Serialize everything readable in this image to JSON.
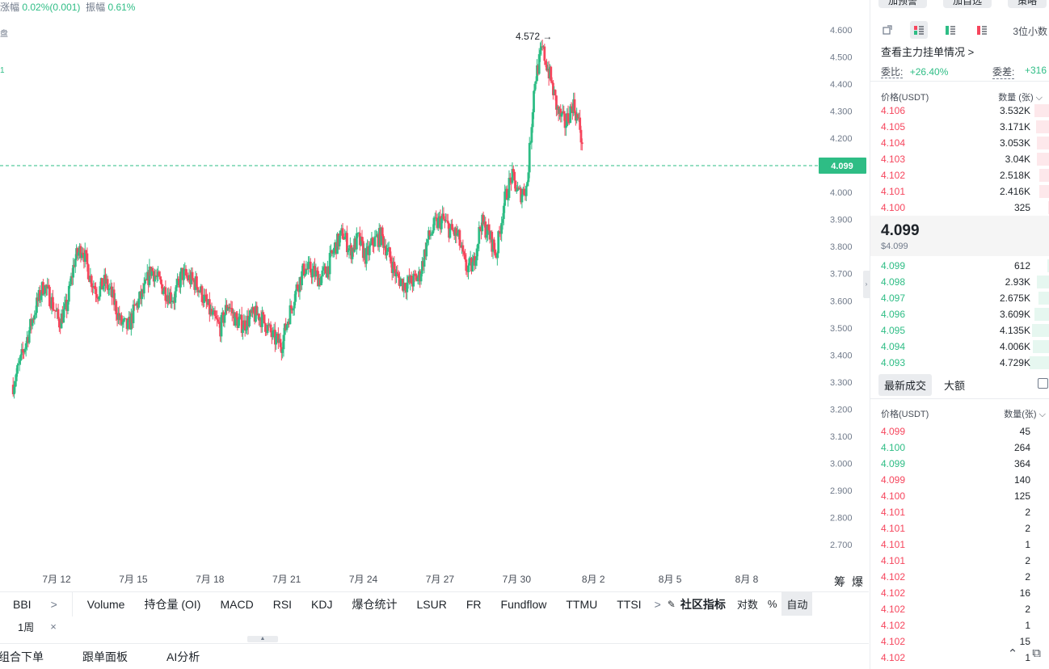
{
  "top_stats": {
    "change_label": "涨幅",
    "change_value": "0.02%(0.001)",
    "amplitude_label": "振幅",
    "amplitude_value": "0.61%"
  },
  "left_fragments": [
    "盘",
    "1"
  ],
  "chart_data": {
    "type": "candlestick",
    "y_ticks": [
      "4.600",
      "4.500",
      "4.400",
      "4.300",
      "4.200",
      "4.100",
      "4.000",
      "3.900",
      "3.800",
      "3.700",
      "3.600",
      "3.500",
      "3.400",
      "3.300",
      "3.200",
      "3.100",
      "3.000",
      "2.900",
      "2.800",
      "2.700"
    ],
    "ylim": [
      2.67,
      4.63
    ],
    "x_ticks": [
      "7月 12",
      "7月 15",
      "7月 18",
      "7月 21",
      "7月 24",
      "7月 27",
      "7月 30",
      "8月 2",
      "8月 5",
      "8月 8"
    ],
    "x_tick_days": [
      12,
      15,
      18,
      21,
      24,
      27,
      30,
      33,
      36,
      39
    ],
    "x_range_days": [
      10.3,
      40.8
    ],
    "last_price": "4.099",
    "high_marker": "4.572",
    "close_path": [
      [
        10.3,
        3.29
      ],
      [
        10.6,
        3.38
      ],
      [
        10.9,
        3.48
      ],
      [
        11.2,
        3.58
      ],
      [
        11.5,
        3.66
      ],
      [
        11.8,
        3.6
      ],
      [
        12.1,
        3.52
      ],
      [
        12.4,
        3.58
      ],
      [
        12.7,
        3.75
      ],
      [
        13.0,
        3.8
      ],
      [
        13.3,
        3.69
      ],
      [
        13.6,
        3.63
      ],
      [
        13.9,
        3.67
      ],
      [
        14.2,
        3.61
      ],
      [
        14.5,
        3.52
      ],
      [
        14.8,
        3.5
      ],
      [
        15.1,
        3.58
      ],
      [
        15.4,
        3.63
      ],
      [
        15.7,
        3.72
      ],
      [
        16.0,
        3.67
      ],
      [
        16.3,
        3.63
      ],
      [
        16.6,
        3.61
      ],
      [
        16.9,
        3.7
      ],
      [
        17.2,
        3.68
      ],
      [
        17.5,
        3.66
      ],
      [
        17.8,
        3.6
      ],
      [
        18.1,
        3.54
      ],
      [
        18.4,
        3.5
      ],
      [
        18.7,
        3.59
      ],
      [
        19.0,
        3.53
      ],
      [
        19.3,
        3.51
      ],
      [
        19.6,
        3.54
      ],
      [
        19.9,
        3.55
      ],
      [
        20.2,
        3.51
      ],
      [
        20.5,
        3.46
      ],
      [
        20.8,
        3.44
      ],
      [
        21.1,
        3.55
      ],
      [
        21.4,
        3.65
      ],
      [
        21.7,
        3.72
      ],
      [
        22.0,
        3.71
      ],
      [
        22.3,
        3.68
      ],
      [
        22.6,
        3.72
      ],
      [
        22.9,
        3.8
      ],
      [
        23.2,
        3.85
      ],
      [
        23.5,
        3.78
      ],
      [
        23.8,
        3.83
      ],
      [
        24.1,
        3.76
      ],
      [
        24.4,
        3.82
      ],
      [
        24.7,
        3.84
      ],
      [
        25.0,
        3.77
      ],
      [
        25.3,
        3.69
      ],
      [
        25.6,
        3.66
      ],
      [
        25.9,
        3.67
      ],
      [
        26.2,
        3.69
      ],
      [
        26.5,
        3.82
      ],
      [
        26.8,
        3.88
      ],
      [
        27.1,
        3.9
      ],
      [
        27.4,
        3.86
      ],
      [
        27.7,
        3.84
      ],
      [
        28.0,
        3.72
      ],
      [
        28.3,
        3.73
      ],
      [
        28.6,
        3.89
      ],
      [
        28.9,
        3.85
      ],
      [
        29.2,
        3.77
      ],
      [
        29.5,
        3.96
      ],
      [
        29.8,
        4.06
      ],
      [
        30.1,
        3.99
      ],
      [
        30.4,
        4.02
      ],
      [
        30.7,
        4.41
      ],
      [
        31.0,
        4.53
      ],
      [
        31.3,
        4.43
      ],
      [
        31.6,
        4.3
      ],
      [
        31.9,
        4.25
      ],
      [
        32.2,
        4.33
      ],
      [
        32.5,
        4.23
      ],
      [
        32.6,
        4.1
      ]
    ]
  },
  "indicator_bar": {
    "items": [
      "BBI",
      ">",
      "Volume",
      "持仓量 (OI)",
      "MACD",
      "RSI",
      "KDJ",
      "爆仓统计",
      "LSUR",
      "FR",
      "Fundflow",
      "TTMU",
      "TTSI",
      ">"
    ],
    "community": "社区指标",
    "log": "对数",
    "percent": "%",
    "auto": "自动"
  },
  "chart_corner": {
    "chip1": "筹",
    "chip2": "爆"
  },
  "period": {
    "value": "1周",
    "close": "×"
  },
  "bottom_tabs": [
    "组合下单",
    "跟单面板",
    "AI分析"
  ],
  "right_panel": {
    "top_buttons": [
      "加预警",
      "加自选",
      "策略"
    ],
    "precision": "3位小数",
    "main_force_link": "查看主力挂单情况 >",
    "ratio_label": "委比:",
    "ratio_value": "+26.40%",
    "diff_label": "委差:",
    "diff_value": "+316",
    "orderbook_header": {
      "price": "价格(USDT)",
      "qty": "数量 (张) ⌵"
    },
    "asks": [
      {
        "price": "4.106",
        "qty": "3.532K",
        "depth": 0.75
      },
      {
        "price": "4.105",
        "qty": "3.171K",
        "depth": 0.67
      },
      {
        "price": "4.104",
        "qty": "3.053K",
        "depth": 0.64
      },
      {
        "price": "4.103",
        "qty": "3.04K",
        "depth": 0.64
      },
      {
        "price": "4.102",
        "qty": "2.518K",
        "depth": 0.53
      },
      {
        "price": "4.101",
        "qty": "2.416K",
        "depth": 0.51
      },
      {
        "price": "4.100",
        "qty": "325",
        "depth": 0.07
      }
    ],
    "last_price": "4.099",
    "last_price_usd": "$4.099",
    "bids": [
      {
        "price": "4.099",
        "qty": "612",
        "depth": 0.13
      },
      {
        "price": "4.098",
        "qty": "2.93K",
        "depth": 0.62
      },
      {
        "price": "4.097",
        "qty": "2.675K",
        "depth": 0.57
      },
      {
        "price": "4.096",
        "qty": "3.609K",
        "depth": 0.76
      },
      {
        "price": "4.095",
        "qty": "4.135K",
        "depth": 0.87
      },
      {
        "price": "4.094",
        "qty": "4.006K",
        "depth": 0.85
      },
      {
        "price": "4.093",
        "qty": "4.729K",
        "depth": 1.0
      }
    ],
    "trade_tabs": [
      "最新成交",
      "大额"
    ],
    "trades_header": {
      "price": "价格(USDT)",
      "qty": "数量(张) ⌵"
    },
    "trades": [
      {
        "price": "4.099",
        "qty": "45",
        "side": "sell"
      },
      {
        "price": "4.100",
        "qty": "264",
        "side": "buy"
      },
      {
        "price": "4.099",
        "qty": "364",
        "side": "buy"
      },
      {
        "price": "4.099",
        "qty": "140",
        "side": "sell"
      },
      {
        "price": "4.100",
        "qty": "125",
        "side": "sell"
      },
      {
        "price": "4.101",
        "qty": "2",
        "side": "sell"
      },
      {
        "price": "4.101",
        "qty": "2",
        "side": "sell"
      },
      {
        "price": "4.101",
        "qty": "1",
        "side": "sell"
      },
      {
        "price": "4.101",
        "qty": "2",
        "side": "sell"
      },
      {
        "price": "4.102",
        "qty": "2",
        "side": "sell"
      },
      {
        "price": "4.102",
        "qty": "16",
        "side": "sell"
      },
      {
        "price": "4.102",
        "qty": "2",
        "side": "sell"
      },
      {
        "price": "4.102",
        "qty": "1",
        "side": "sell"
      },
      {
        "price": "4.102",
        "qty": "15",
        "side": "sell"
      },
      {
        "price": "4.102",
        "qty": "1",
        "side": "sell"
      }
    ]
  },
  "colors": {
    "up": "#2ebd85",
    "down": "#f6465d",
    "grid_text": "#707a8a"
  }
}
